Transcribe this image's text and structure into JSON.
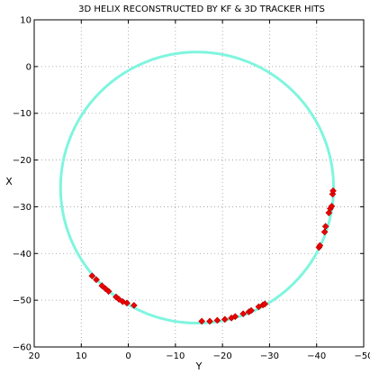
{
  "chart_data": {
    "type": "scatter",
    "title": "3D HELIX RECONSTRUCTED BY KF & 3D TRACKER HITS",
    "xlabel": "Y",
    "ylabel": "X",
    "xlim": [
      20,
      -50
    ],
    "ylim": [
      -60,
      10
    ],
    "x_reversed": true,
    "xticks": [
      20,
      10,
      0,
      -10,
      -20,
      -30,
      -40,
      -50
    ],
    "yticks": [
      10,
      0,
      -10,
      -20,
      -30,
      -40,
      -50,
      -60
    ],
    "grid": true,
    "series": [
      {
        "kind": "circle",
        "color": "#7ff5df",
        "center": [
          -14.6,
          -25.9
        ],
        "radius": 29.0
      },
      {
        "kind": "markers",
        "color": "#ee0000",
        "points": [
          [
            7.7,
            -44.8
          ],
          [
            6.8,
            -45.6
          ],
          [
            5.6,
            -46.9
          ],
          [
            4.9,
            -47.5
          ],
          [
            4.2,
            -48.1
          ],
          [
            2.6,
            -49.3
          ],
          [
            2.0,
            -49.8
          ],
          [
            1.2,
            -50.3
          ],
          [
            0.3,
            -50.6
          ],
          [
            -1.2,
            -51.1
          ],
          [
            -15.6,
            -54.5
          ],
          [
            -17.3,
            -54.5
          ],
          [
            -18.9,
            -54.3
          ],
          [
            -20.5,
            -54.1
          ],
          [
            -21.9,
            -53.8
          ],
          [
            -22.7,
            -53.5
          ],
          [
            -24.4,
            -52.9
          ],
          [
            -25.6,
            -52.5
          ],
          [
            -26.1,
            -52.2
          ],
          [
            -27.7,
            -51.4
          ],
          [
            -28.6,
            -51.0
          ],
          [
            -29.0,
            -50.8
          ],
          [
            -40.5,
            -38.7
          ],
          [
            -40.7,
            -38.3
          ],
          [
            -41.7,
            -35.4
          ],
          [
            -41.9,
            -34.2
          ],
          [
            -42.6,
            -31.3
          ],
          [
            -42.9,
            -30.4
          ],
          [
            -43.2,
            -29.9
          ],
          [
            -43.4,
            -27.3
          ],
          [
            -43.5,
            -26.6
          ]
        ]
      }
    ]
  }
}
